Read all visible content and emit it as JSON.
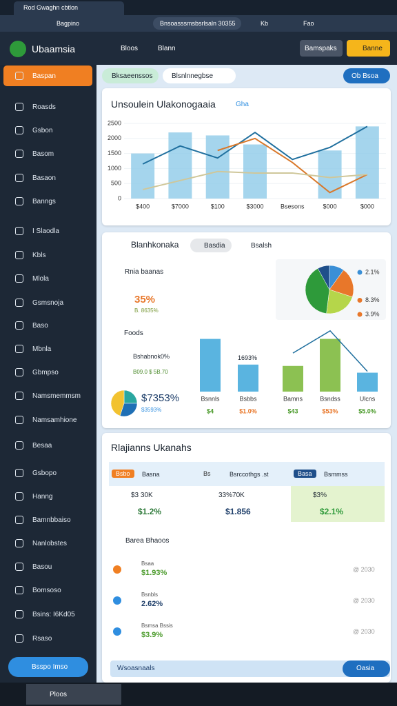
{
  "browser": {
    "tab": "Rod Gwaghn cbtlon",
    "profile": "Bagpino",
    "address": "Bnsoasssmsbsrlsaln 30355",
    "ext1": "Kb",
    "ext2": "Fao"
  },
  "app": {
    "name": "Ubaamsia",
    "nav": [
      "Bloos",
      "Blann"
    ],
    "btn_secondary": "Bamspaks",
    "btn_primary": "Banne"
  },
  "sidebar": {
    "items": [
      "Baspan",
      "Roasds",
      "Gsbon",
      "Basom",
      "Basaon",
      "Banngs",
      "I Slaodla",
      "Kbls",
      "Mlola",
      "Gsmsnoja",
      "Baso",
      "Mbnla",
      "Gbmpso",
      "Namsmemmsm",
      "Namsamhione",
      "Besaa",
      "Gsbopo",
      "Hanng",
      "Bamnbbaiso",
      "Nanlobstes",
      "Basou",
      "Bomsoso",
      "Bsins: I6Kd05",
      "Rsaso"
    ],
    "footer_button": "Bsspo Imso"
  },
  "toolbar": {
    "filter": "Bksaeenssos",
    "search": "Blsnlnnegbse",
    "action": "Ob Bsoa"
  },
  "card1": {
    "title": "Unsoulein Ulakonogaaia",
    "badge": "Gha",
    "chart_data": {
      "type": "bar",
      "categories": [
        "$400",
        "$7000",
        "$100",
        "$3000",
        "Bsesons",
        "$000",
        "$000"
      ],
      "values": [
        1500,
        2200,
        2100,
        1800,
        null,
        1600,
        2400
      ],
      "color": "#8fcbe8",
      "series": [
        {
          "name": "Blue",
          "color": "#1f6f9e",
          "values": [
            1150,
            1750,
            1350,
            2200,
            1300,
            1700,
            2400
          ]
        },
        {
          "name": "Orange",
          "color": "#d9782a",
          "values": [
            null,
            null,
            1600,
            2000,
            1200,
            200,
            800
          ]
        },
        {
          "name": "Beige",
          "color": "#cfc79a",
          "values": [
            300,
            600,
            900,
            850,
            850,
            700,
            800
          ]
        }
      ],
      "ylim": [
        0,
        2500
      ],
      "yticks": [
        0,
        500,
        1000,
        1500,
        2000,
        2500
      ]
    }
  },
  "card2": {
    "title": "Blanhkonaka",
    "chip": "Basdia",
    "tab": "Bsalsh",
    "item1": "Rnia baanas",
    "stat1": "35%",
    "stat1_sub": "B. 8635%",
    "item2": "Foods",
    "stat2": "Bshabnok0%",
    "stat2_sub": "B09.0 $ 5B.70",
    "pie_value": "$7353%",
    "pie_sub": "$3593%",
    "bar_note": "1693%",
    "pie_chart": {
      "type": "pie",
      "values": [
        10,
        20,
        22,
        40,
        8
      ],
      "colors": [
        "#3a8fd6",
        "#e8772a",
        "#b5d64a",
        "#2e9a3a",
        "#1f4f8a"
      ],
      "legend": [
        "2.1%",
        "8.3%",
        "3.9%"
      ],
      "legend_colors": [
        "#3a8fd6",
        "#e8772a",
        "#e8772a"
      ]
    },
    "mini_pie": {
      "type": "pie",
      "values": [
        25,
        30,
        45
      ],
      "colors": [
        "#2aa7a0",
        "#1f6fb5",
        "#f2c230"
      ]
    },
    "bar_chart": {
      "type": "bar",
      "categories": [
        "Bsnnls",
        "Bsbbs",
        "Bamns",
        "Bsndss",
        "Ulcns"
      ],
      "values": [
        78,
        40,
        38,
        78,
        28
      ],
      "colors": [
        "#5ab4e0",
        "#5ab4e0",
        "#8cc152",
        "#8cc152",
        "#5ab4e0"
      ],
      "series": [
        {
          "name": "Trend",
          "color": "#1f6f9e",
          "values": [
            null,
            null,
            57,
            90,
            30
          ]
        }
      ],
      "ylim": [
        0,
        100
      ],
      "notes": [
        "$4",
        "$1.0%",
        "$43",
        "$53%",
        "$5.0%"
      ]
    }
  },
  "card3": {
    "title": "Rlajianns Ukanahs",
    "columns": [
      {
        "tag": "Bsbo",
        "name": "Basna",
        "top": "$3 30K",
        "bottom": "$1.2%"
      },
      {
        "tag": "Bs",
        "name": "Bsrccothgs .st",
        "top": "33%70K",
        "bottom": "$1.856"
      },
      {
        "tag": "Basa",
        "name": "Bsmmss",
        "top": "$3%",
        "bottom": "$2.1%"
      }
    ],
    "list_title": "Barea Bhaoos",
    "rows": [
      {
        "label": "Bsaa",
        "value": "$1.93%",
        "right": "@ 2030"
      },
      {
        "label": "Bsnbls",
        "value": "2.62%",
        "right": "@ 2030"
      },
      {
        "label": "Bsmsa Bssis",
        "value": "$3.9%",
        "right": "@ 2030"
      }
    ],
    "footer": "Wsoasnaals",
    "footer_button": "Oasia"
  },
  "taskbar": {
    "app": "Ploos"
  }
}
